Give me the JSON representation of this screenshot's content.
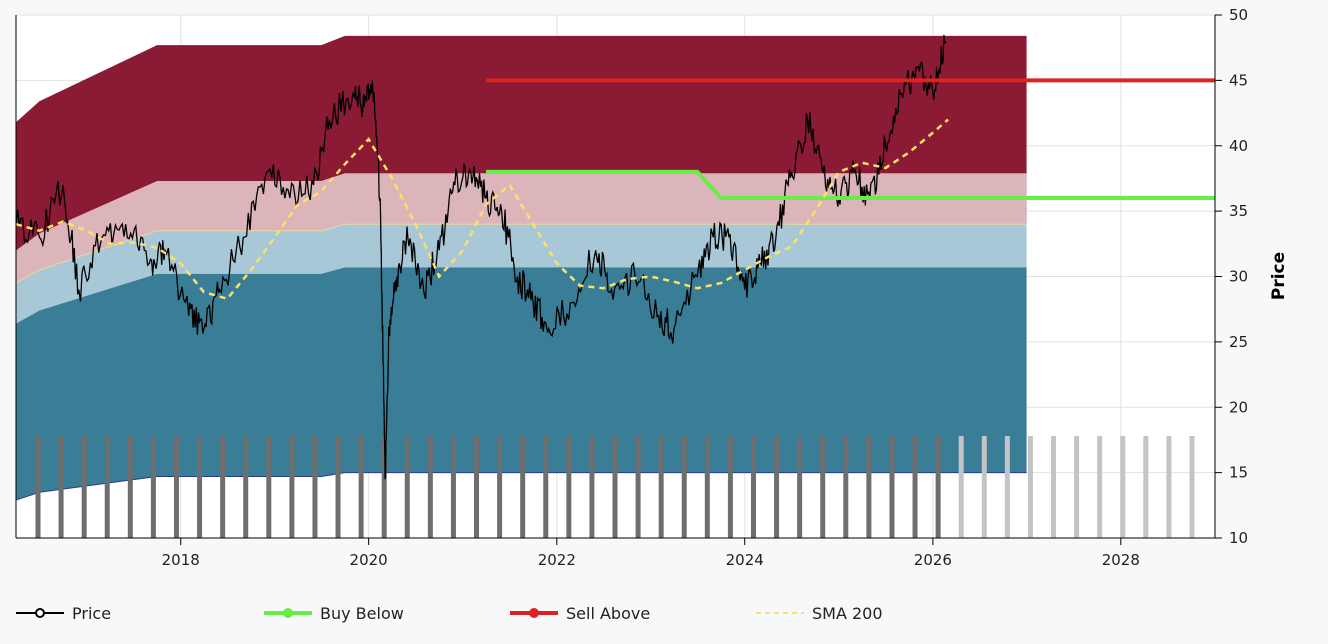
{
  "chart_data": {
    "type": "line",
    "ylabel": "Price",
    "ylim": [
      10,
      50
    ],
    "xlim": [
      "2016-04-01",
      "2029-01-01"
    ],
    "x_ticks": [
      "2018",
      "2020",
      "2022",
      "2024",
      "2026",
      "2028"
    ],
    "y_ticks": [
      "10",
      "15",
      "20",
      "25",
      "30",
      "35",
      "40",
      "45",
      "50"
    ],
    "bands": [
      {
        "name": "top",
        "color": "#8b1a35",
        "x": [
          "2016-04-01",
          "2016-07-01",
          "2017-10-01",
          "2019-07-01",
          "2019-10-01",
          "2026-12-31"
        ],
        "lower": [
          29.5,
          30.5,
          33.5,
          33.5,
          34.0,
          34.0
        ],
        "upper": [
          41.8,
          43.4,
          47.7,
          47.7,
          48.4,
          48.4
        ]
      },
      {
        "name": "upper-middle",
        "color": "#dcb5ba",
        "x": [
          "2016-04-01",
          "2016-07-01",
          "2017-10-01",
          "2019-07-01",
          "2019-10-01",
          "2026-12-31"
        ],
        "lower": [
          29.5,
          30.5,
          33.5,
          33.5,
          34.0,
          34.0
        ],
        "upper": [
          32.0,
          33.3,
          37.3,
          37.3,
          37.9,
          37.9
        ]
      },
      {
        "name": "lower-middle",
        "color": "#a8c8d8",
        "x": [
          "2016-04-01",
          "2016-07-01",
          "2017-10-01",
          "2019-07-01",
          "2019-10-01",
          "2026-12-31"
        ],
        "lower": [
          26.4,
          27.4,
          30.2,
          30.2,
          30.7,
          30.7
        ],
        "upper": [
          29.5,
          30.5,
          33.5,
          33.5,
          34.0,
          34.0
        ]
      },
      {
        "name": "bottom",
        "color": "#3a7d96",
        "x": [
          "2016-04-01",
          "2016-07-01",
          "2017-10-01",
          "2019-07-01",
          "2019-10-01",
          "2026-12-31"
        ],
        "lower": [
          12.9,
          13.5,
          14.7,
          14.7,
          15.0,
          15.0
        ],
        "upper": [
          26.4,
          27.4,
          30.2,
          30.2,
          30.7,
          30.7
        ]
      }
    ],
    "series": [
      {
        "name": "Price",
        "color": "#000000",
        "x": [
          "2016-04-01",
          "2016-07-01",
          "2016-10-01",
          "2016-12-01",
          "2017-03-01",
          "2017-06-01",
          "2017-09-01",
          "2017-11-01",
          "2018-02-01",
          "2018-04-01",
          "2018-06-01",
          "2018-09-01",
          "2018-12-01",
          "2019-03-01",
          "2019-06-01",
          "2019-08-01",
          "2019-11-01",
          "2019-12-15",
          "2020-01-15",
          "2020-02-15",
          "2020-03-05",
          "2020-03-20",
          "2020-04-20",
          "2020-06-01",
          "2020-08-01",
          "2020-10-01",
          "2020-12-01",
          "2021-02-01",
          "2021-04-01",
          "2021-06-01",
          "2021-08-01",
          "2021-10-01",
          "2021-12-01",
          "2022-03-01",
          "2022-06-01",
          "2022-08-01",
          "2022-11-01",
          "2023-02-01",
          "2023-04-01",
          "2023-07-01",
          "2023-09-01",
          "2023-11-01",
          "2024-01-01",
          "2024-03-01",
          "2024-05-01",
          "2024-07-01",
          "2024-09-01",
          "2024-11-01",
          "2025-01-01",
          "2025-03-01",
          "2025-05-01",
          "2025-07-01",
          "2025-09-01",
          "2025-11-01",
          "2026-01-01",
          "2026-02-20"
        ],
        "y": [
          34,
          33,
          37,
          29,
          33,
          34,
          31,
          32,
          27,
          26,
          29,
          33,
          38,
          36,
          37,
          42,
          44,
          43,
          45,
          36,
          14.5,
          26,
          30,
          33,
          29,
          32,
          37,
          38,
          36,
          35,
          30,
          28,
          26,
          28,
          32,
          29,
          30,
          27,
          26,
          30,
          33,
          33,
          29,
          31,
          33,
          38,
          42,
          38,
          36,
          38,
          36,
          40,
          44,
          46,
          44,
          48
        ]
      },
      {
        "name": "Buy Below",
        "color": "#66ee44",
        "x": [
          "2021-04-01",
          "2023-07-01",
          "2023-10-01",
          "2028-12-31"
        ],
        "y": [
          38.0,
          38.0,
          36.0,
          36.0
        ]
      },
      {
        "name": "Sell Above",
        "color": "#dd2222",
        "x": [
          "2021-04-01",
          "2028-12-31"
        ],
        "y": [
          45.0,
          45.0
        ]
      },
      {
        "name": "SMA 200",
        "color": "#ffe066",
        "dash": true,
        "x": [
          "2016-04-01",
          "2016-07-01",
          "2016-10-01",
          "2017-01-01",
          "2017-04-01",
          "2017-07-01",
          "2017-10-01",
          "2018-01-01",
          "2018-04-01",
          "2018-07-01",
          "2018-10-01",
          "2019-01-01",
          "2019-04-01",
          "2019-07-01",
          "2019-10-01",
          "2020-01-01",
          "2020-04-01",
          "2020-07-01",
          "2020-10-01",
          "2021-01-01",
          "2021-04-01",
          "2021-07-01",
          "2021-10-01",
          "2022-01-01",
          "2022-04-01",
          "2022-07-01",
          "2022-10-01",
          "2023-01-01",
          "2023-04-01",
          "2023-07-01",
          "2023-10-01",
          "2024-01-01",
          "2024-04-01",
          "2024-07-01",
          "2024-10-01",
          "2025-01-01",
          "2025-04-01",
          "2025-07-01",
          "2025-10-01",
          "2026-01-01",
          "2026-03-01"
        ],
        "y": [
          34,
          33.5,
          34.2,
          33.5,
          32.5,
          32.6,
          32.2,
          31,
          28.8,
          28.3,
          30.5,
          33,
          35.5,
          36.5,
          38.6,
          40.5,
          37.5,
          34,
          30,
          32,
          35.5,
          37,
          34,
          31,
          29.3,
          29.1,
          29.8,
          30,
          29.6,
          29.1,
          29.5,
          30.5,
          31.5,
          32.3,
          35,
          38,
          38.7,
          38.3,
          39.5,
          41,
          42
        ]
      }
    ],
    "bars": {
      "baseline": 10,
      "height": 17.8,
      "past_color": "#6e6e6e",
      "future_color": "#c4c4c4",
      "count_past": 40,
      "count_future": 11
    },
    "legend": [
      "Price",
      "Buy Below",
      "Sell Above",
      "SMA 200"
    ]
  }
}
